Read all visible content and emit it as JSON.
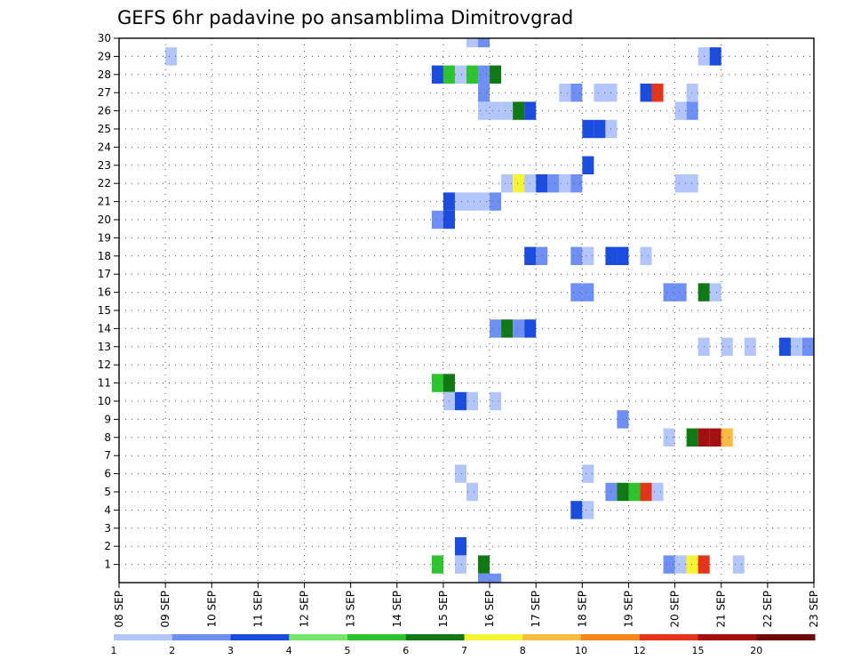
{
  "chart_data": {
    "type": "heatmap",
    "title": "GEFS 6hr padavine po ansamblima Dimitrovgrad",
    "xlabel": "",
    "ylabel": "",
    "x_tick_labels": [
      "08 SEP",
      "09 SEP",
      "10 SEP",
      "11 SEP",
      "12 SEP",
      "13 SEP",
      "14 SEP",
      "15 SEP",
      "16 SEP",
      "17 SEP",
      "18 SEP",
      "19 SEP",
      "20 SEP",
      "21 SEP",
      "22 SEP",
      "23 SEP"
    ],
    "y_tick_labels": [
      "1",
      "2",
      "3",
      "4",
      "5",
      "6",
      "7",
      "8",
      "9",
      "10",
      "11",
      "12",
      "13",
      "14",
      "15",
      "16",
      "17",
      "18",
      "19",
      "20",
      "21",
      "22",
      "23",
      "24",
      "25",
      "26",
      "27",
      "28",
      "29",
      "30"
    ],
    "xlim_days": [
      0,
      15
    ],
    "ylim_members": [
      0,
      30
    ],
    "time_step_hours": 6,
    "grid": true,
    "legend": {
      "position": "bottom",
      "labels": [
        "1",
        "2",
        "3",
        "4",
        "5",
        "6",
        "7",
        "8",
        "10",
        "12",
        "15",
        "20"
      ],
      "colors": [
        "#b3c6fb",
        "#6e90f5",
        "#1a4ce0",
        "#76e66a",
        "#2dc52d",
        "#0f7a14",
        "#f7f432",
        "#fbbb40",
        "#f7861c",
        "#e63419",
        "#a50f0f",
        "#6f0707"
      ]
    },
    "cells": [
      {
        "member": 30,
        "day": 15.5,
        "level": 1
      },
      {
        "member": 30,
        "day": 15.75,
        "level": 2
      },
      {
        "member": 29,
        "day": 9.0,
        "level": 1
      },
      {
        "member": 29,
        "day": 20.5,
        "level": 1
      },
      {
        "member": 29,
        "day": 20.75,
        "level": 3
      },
      {
        "member": 28,
        "day": 14.75,
        "level": 3
      },
      {
        "member": 28,
        "day": 15.0,
        "level": 5
      },
      {
        "member": 28,
        "day": 15.25,
        "level": 1
      },
      {
        "member": 28,
        "day": 15.5,
        "level": 5
      },
      {
        "member": 28,
        "day": 15.75,
        "level": 2
      },
      {
        "member": 28,
        "day": 16.0,
        "level": 6
      },
      {
        "member": 27,
        "day": 15.75,
        "level": 2
      },
      {
        "member": 27,
        "day": 17.5,
        "level": 1
      },
      {
        "member": 27,
        "day": 17.75,
        "level": 2
      },
      {
        "member": 27,
        "day": 18.25,
        "level": 1
      },
      {
        "member": 27,
        "day": 18.5,
        "level": 1
      },
      {
        "member": 27,
        "day": 19.25,
        "level": 3
      },
      {
        "member": 27,
        "day": 19.5,
        "level": 10
      },
      {
        "member": 27,
        "day": 20.25,
        "level": 1
      },
      {
        "member": 26,
        "day": 15.75,
        "level": 1
      },
      {
        "member": 26,
        "day": 16.0,
        "level": 1
      },
      {
        "member": 26,
        "day": 16.25,
        "level": 1
      },
      {
        "member": 26,
        "day": 16.5,
        "level": 6
      },
      {
        "member": 26,
        "day": 16.75,
        "level": 3
      },
      {
        "member": 26,
        "day": 20.0,
        "level": 1
      },
      {
        "member": 26,
        "day": 20.25,
        "level": 2
      },
      {
        "member": 25,
        "day": 18.0,
        "level": 3
      },
      {
        "member": 25,
        "day": 18.25,
        "level": 3
      },
      {
        "member": 25,
        "day": 18.5,
        "level": 1
      },
      {
        "member": 23,
        "day": 18.0,
        "level": 3
      },
      {
        "member": 22,
        "day": 16.25,
        "level": 1
      },
      {
        "member": 22,
        "day": 16.5,
        "level": 7
      },
      {
        "member": 22,
        "day": 16.75,
        "level": 1
      },
      {
        "member": 22,
        "day": 17.0,
        "level": 3
      },
      {
        "member": 22,
        "day": 17.25,
        "level": 2
      },
      {
        "member": 22,
        "day": 17.5,
        "level": 1
      },
      {
        "member": 22,
        "day": 17.75,
        "level": 2
      },
      {
        "member": 22,
        "day": 20.0,
        "level": 1
      },
      {
        "member": 22,
        "day": 20.25,
        "level": 1
      },
      {
        "member": 21,
        "day": 15.0,
        "level": 3
      },
      {
        "member": 21,
        "day": 15.25,
        "level": 1
      },
      {
        "member": 21,
        "day": 15.5,
        "level": 1
      },
      {
        "member": 21,
        "day": 15.75,
        "level": 1
      },
      {
        "member": 21,
        "day": 16.0,
        "level": 2
      },
      {
        "member": 20,
        "day": 14.75,
        "level": 2
      },
      {
        "member": 20,
        "day": 15.0,
        "level": 3
      },
      {
        "member": 18,
        "day": 16.75,
        "level": 3
      },
      {
        "member": 18,
        "day": 17.0,
        "level": 2
      },
      {
        "member": 18,
        "day": 17.75,
        "level": 2
      },
      {
        "member": 18,
        "day": 18.0,
        "level": 1
      },
      {
        "member": 18,
        "day": 18.5,
        "level": 3
      },
      {
        "member": 18,
        "day": 18.75,
        "level": 3
      },
      {
        "member": 18,
        "day": 19.25,
        "level": 1
      },
      {
        "member": 16,
        "day": 17.75,
        "level": 2
      },
      {
        "member": 16,
        "day": 18.0,
        "level": 2
      },
      {
        "member": 16,
        "day": 19.75,
        "level": 2
      },
      {
        "member": 16,
        "day": 20.0,
        "level": 2
      },
      {
        "member": 16,
        "day": 20.5,
        "level": 6
      },
      {
        "member": 16,
        "day": 20.75,
        "level": 1
      },
      {
        "member": 14,
        "day": 16.0,
        "level": 2
      },
      {
        "member": 14,
        "day": 16.25,
        "level": 6
      },
      {
        "member": 14,
        "day": 16.5,
        "level": 2
      },
      {
        "member": 14,
        "day": 16.75,
        "level": 3
      },
      {
        "member": 13,
        "day": 20.5,
        "level": 1
      },
      {
        "member": 13,
        "day": 21.0,
        "level": 1
      },
      {
        "member": 13,
        "day": 21.5,
        "level": 1
      },
      {
        "member": 13,
        "day": 22.25,
        "level": 3
      },
      {
        "member": 13,
        "day": 22.5,
        "level": 1
      },
      {
        "member": 13,
        "day": 22.75,
        "level": 2
      },
      {
        "member": 11,
        "day": 14.75,
        "level": 5
      },
      {
        "member": 11,
        "day": 15.0,
        "level": 6
      },
      {
        "member": 10,
        "day": 15.0,
        "level": 1
      },
      {
        "member": 10,
        "day": 15.25,
        "level": 3
      },
      {
        "member": 10,
        "day": 15.5,
        "level": 1
      },
      {
        "member": 10,
        "day": 16.0,
        "level": 1
      },
      {
        "member": 9,
        "day": 18.75,
        "level": 2
      },
      {
        "member": 8,
        "day": 19.75,
        "level": 1
      },
      {
        "member": 8,
        "day": 20.25,
        "level": 6
      },
      {
        "member": 8,
        "day": 20.5,
        "level": 11
      },
      {
        "member": 8,
        "day": 20.75,
        "level": 11
      },
      {
        "member": 8,
        "day": 21.0,
        "level": 8
      },
      {
        "member": 6,
        "day": 15.25,
        "level": 1
      },
      {
        "member": 6,
        "day": 18.0,
        "level": 1
      },
      {
        "member": 5,
        "day": 15.5,
        "level": 1
      },
      {
        "member": 5,
        "day": 18.5,
        "level": 2
      },
      {
        "member": 5,
        "day": 18.75,
        "level": 6
      },
      {
        "member": 5,
        "day": 19.0,
        "level": 5
      },
      {
        "member": 5,
        "day": 19.25,
        "level": 10
      },
      {
        "member": 5,
        "day": 19.5,
        "level": 1
      },
      {
        "member": 4,
        "day": 17.75,
        "level": 3
      },
      {
        "member": 4,
        "day": 18.0,
        "level": 1
      },
      {
        "member": 2,
        "day": 15.25,
        "level": 3
      },
      {
        "member": 1,
        "day": 14.75,
        "level": 5
      },
      {
        "member": 1,
        "day": 15.25,
        "level": 1
      },
      {
        "member": 1,
        "day": 15.75,
        "level": 6
      },
      {
        "member": 1,
        "day": 19.75,
        "level": 2
      },
      {
        "member": 1,
        "day": 20.0,
        "level": 1
      },
      {
        "member": 1,
        "day": 20.25,
        "level": 7
      },
      {
        "member": 1,
        "day": 20.5,
        "level": 10
      },
      {
        "member": 1,
        "day": 21.25,
        "level": 1
      },
      {
        "member": 0,
        "day": 15.75,
        "level": 2
      },
      {
        "member": 0,
        "day": 16.0,
        "level": 2
      }
    ]
  }
}
